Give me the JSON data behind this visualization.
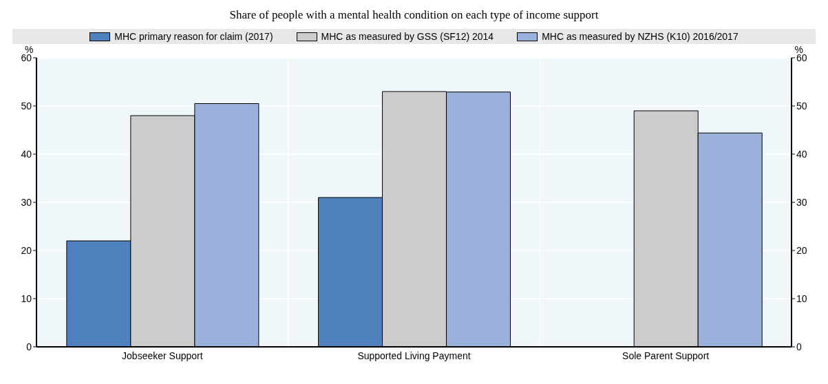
{
  "chart_data": {
    "type": "bar",
    "title": "Share of people with a mental health condition on each type of income support",
    "categories": [
      "Jobseeker Support",
      "Supported Living Payment",
      "Sole Parent Support"
    ],
    "series": [
      {
        "name": "MHC primary reason for claim (2017)",
        "color": "#4e81bd",
        "values": [
          22,
          31,
          null
        ]
      },
      {
        "name": "MHC as measured by GSS (SF12) 2014",
        "color": "#cccccc",
        "values": [
          48,
          53,
          49
        ]
      },
      {
        "name": "MHC as measured by NZHS (K10) 2016/2017",
        "color": "#9ab1db",
        "values": [
          50.5,
          52.9,
          44.4
        ]
      }
    ],
    "ylabel": "%",
    "y2label": "%",
    "ylim": [
      0,
      60
    ],
    "yticks": [
      0,
      10,
      20,
      30,
      40,
      50,
      60
    ],
    "y2lim": [
      0,
      60
    ],
    "y2ticks": [
      0,
      10,
      20,
      30,
      40,
      50,
      60
    ],
    "grid": true,
    "legend": "top"
  }
}
